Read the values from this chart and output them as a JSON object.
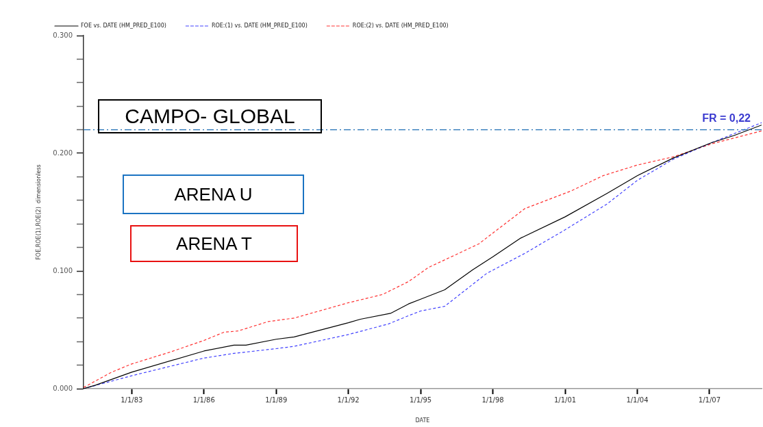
{
  "chart_data": {
    "type": "line",
    "xlabel": "DATE",
    "ylabel": "FOE,ROE(1),ROE(2)  dimensionless",
    "xlim": [
      "1981-01-01",
      "2009-03-01"
    ],
    "xticks": [
      {
        "value": "1983-01-01",
        "label": "1/1/83"
      },
      {
        "value": "1986-01-01",
        "label": "1/1/86"
      },
      {
        "value": "1989-01-01",
        "label": "1/1/89"
      },
      {
        "value": "1992-01-01",
        "label": "1/1/92"
      },
      {
        "value": "1995-01-01",
        "label": "1/1/95"
      },
      {
        "value": "1998-01-01",
        "label": "1/1/98"
      },
      {
        "value": "2001-01-01",
        "label": "1/1/01"
      },
      {
        "value": "2004-01-01",
        "label": "1/1/04"
      },
      {
        "value": "2007-01-01",
        "label": "1/1/07"
      }
    ],
    "ylim": [
      0,
      0.3
    ],
    "yticks": [
      {
        "value": 0,
        "label": "0.000"
      },
      {
        "value": 0.02,
        "label": null
      },
      {
        "value": 0.04,
        "label": null
      },
      {
        "value": 0.06,
        "label": null
      },
      {
        "value": 0.08,
        "label": null
      },
      {
        "value": 0.1,
        "label": "0.100"
      },
      {
        "value": 0.12,
        "label": null
      },
      {
        "value": 0.14,
        "label": null
      },
      {
        "value": 0.16,
        "label": null
      },
      {
        "value": 0.18,
        "label": null
      },
      {
        "value": 0.2,
        "label": "0.200"
      },
      {
        "value": 0.22,
        "label": null
      },
      {
        "value": 0.24,
        "label": null
      },
      {
        "value": 0.26,
        "label": null
      },
      {
        "value": 0.28,
        "label": null
      },
      {
        "value": 0.3,
        "label": "0.300"
      }
    ],
    "grid": false,
    "legend": "top left",
    "marker": "none",
    "series": [
      {
        "name": "FOE vs. DATE (HM_PRED_E100)",
        "color": "#000000",
        "line_style": "solid",
        "x": [
          "1981-01",
          "1981-07",
          "1983-01",
          "1986-01",
          "1987-04",
          "1987-10",
          "1989-01",
          "1989-10",
          "1992-01",
          "1992-07",
          "1993-10",
          "1994-07",
          "1995-01",
          "1996-01",
          "1997-03",
          "1998-01",
          "1999-03",
          "2001-01",
          "2002-10",
          "2004-01",
          "2005-07",
          "2007-02",
          "2008-01",
          "2009-03"
        ],
        "values": [
          0,
          0.003,
          0.014,
          0.032,
          0.037,
          0.037,
          0.042,
          0.044,
          0.056,
          0.059,
          0.064,
          0.072,
          0.076,
          0.084,
          0.101,
          0.112,
          0.128,
          0.146,
          0.166,
          0.181,
          0.196,
          0.209,
          0.215,
          0.224
        ]
      },
      {
        "name": "ROE:(1) vs. DATE (HM_PRED_E100)",
        "color": "#4040ff",
        "line_style": "dashed",
        "x": [
          "1981-01",
          "1983-01",
          "1986-01",
          "1987-04",
          "1989-01",
          "1989-10",
          "1992-01",
          "1993-09",
          "1994-07",
          "1995-01",
          "1996-01",
          "1997-10",
          "1999-05",
          "2001-01",
          "2002-10",
          "2004-01",
          "2005-07",
          "2007-02",
          "2009-03"
        ],
        "values": [
          0,
          0.011,
          0.026,
          0.03,
          0.034,
          0.036,
          0.046,
          0.055,
          0.062,
          0.066,
          0.07,
          0.098,
          0.115,
          0.135,
          0.157,
          0.177,
          0.195,
          0.209,
          0.226
        ]
      },
      {
        "name": "ROE:(2) vs. DATE (HM_PRED_E100)",
        "color": "#ff3030",
        "line_style": "dashed",
        "x": [
          "1981-01",
          "1982-03",
          "1983-01",
          "1984-08",
          "1986-01",
          "1986-11",
          "1987-06",
          "1988-09",
          "1989-10",
          "1992-01",
          "1993-06",
          "1994-07",
          "1995-05",
          "1996-03",
          "1997-06",
          "1999-05",
          "2001-04",
          "2002-08",
          "2004-01",
          "2005-07",
          "2007-02",
          "2009-03"
        ],
        "values": [
          0.001,
          0.014,
          0.021,
          0.031,
          0.041,
          0.048,
          0.049,
          0.057,
          0.06,
          0.073,
          0.08,
          0.091,
          0.103,
          0.111,
          0.123,
          0.153,
          0.168,
          0.181,
          0.19,
          0.197,
          0.208,
          0.219
        ]
      }
    ],
    "ref_lines": [
      {
        "axis": "y",
        "value": 0.22,
        "label": "FR = 0,22",
        "color": "#1f6fb5",
        "line_style": "dashdot"
      }
    ],
    "annotations": [
      "CAMPO- GLOBAL",
      "ARENA U",
      "ARENA T"
    ]
  }
}
